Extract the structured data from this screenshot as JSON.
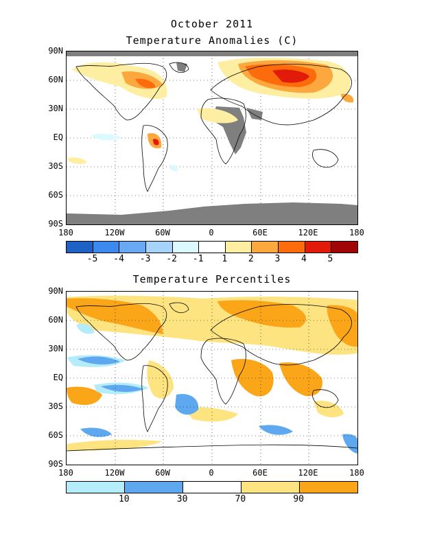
{
  "header": {
    "title": "October 2011",
    "panel1_title": "Temperature Anomalies (C)",
    "panel2_title": "Temperature Percentiles"
  },
  "latitude_labels": [
    "90N",
    "60N",
    "30N",
    "EQ",
    "30S",
    "60S",
    "90S"
  ],
  "longitude_labels": [
    "180",
    "120W",
    "60W",
    "0",
    "60E",
    "120E",
    "180"
  ],
  "anomaly_scale": {
    "colors": [
      "#1f62c6",
      "#3c8af0",
      "#69a9f3",
      "#a5d3fa",
      "#dcf9ff",
      "#ffffff",
      "#fdeea2",
      "#fda83e",
      "#fc6b0c",
      "#e11a0a",
      "#a10506"
    ],
    "labels": [
      "-5",
      "-4",
      "-3",
      "-2",
      "-1",
      "1",
      "2",
      "3",
      "4",
      "5"
    ],
    "missing_color": "#7f7f7f"
  },
  "percentile_scale": {
    "colors": [
      "#b4ecfa",
      "#5ea8f0",
      "#ffffff",
      "#fde481",
      "#fba519"
    ],
    "labels": [
      "10",
      "30",
      "70",
      "90"
    ]
  }
}
